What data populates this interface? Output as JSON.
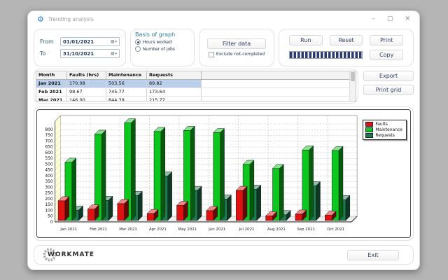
{
  "window": {
    "title": "Trending analysis",
    "controls": {
      "minimize": "–",
      "maximize": "▢",
      "close": "✕"
    }
  },
  "filters": {
    "from_label": "From",
    "from_value": "01/01/2021",
    "to_label": "To",
    "to_value": "31/10/2021",
    "basis": {
      "title": "Basis of graph",
      "options": [
        {
          "label": "Hours worked",
          "selected": true
        },
        {
          "label": "Number of jobs",
          "selected": false
        }
      ]
    },
    "filter_button": "Filter data",
    "exclude_checkbox": {
      "label": "Exclude not-completed",
      "checked": false
    }
  },
  "actions": {
    "run": "Run",
    "reset": "Reset",
    "print": "Print",
    "copy": "Copy",
    "progress_percent": 100
  },
  "grid": {
    "columns": [
      "Month",
      "Faults (hrs)",
      "Maintenance",
      "Requests"
    ],
    "rows": [
      {
        "month": "Jan 2021",
        "values": [
          "170.08",
          "503.56",
          "89.82"
        ],
        "selected": true
      },
      {
        "month": "Feb 2021",
        "values": [
          "98.67",
          "745.77",
          "173.64"
        ],
        "selected": false
      },
      {
        "month": "Mar 2021",
        "values": [
          "146.00",
          "844.39",
          "215.77"
        ],
        "selected": false
      }
    ],
    "export_button": "Export",
    "print_grid_button": "Print grid"
  },
  "chart_data": {
    "type": "bar",
    "style": "3d-column",
    "title": "",
    "xlabel": "",
    "ylabel": "",
    "categories": [
      "Jan 2021",
      "Feb 2021",
      "Mar 2021",
      "Apr 2021",
      "May 2021",
      "Jun 2021",
      "Jul 2021",
      "Aug 2021",
      "Sep 2021",
      "Oct 2021"
    ],
    "series": [
      {
        "name": "Faults",
        "color": "#e01111",
        "values": [
          170.08,
          98.67,
          146.0,
          60,
          130,
          85,
          260,
          40,
          55,
          45
        ]
      },
      {
        "name": "Maintenance",
        "color": "#0cc81e",
        "values": [
          503.56,
          745.77,
          844.39,
          770,
          780,
          760,
          485,
          450,
          610,
          605
        ]
      },
      {
        "name": "Requests",
        "color": "#1c7a4e",
        "values": [
          89.82,
          173.64,
          215.77,
          385,
          260,
          185,
          270,
          50,
          300,
          180
        ]
      }
    ],
    "ylim": [
      0,
      800
    ],
    "ytick_step": 50,
    "grid": "dashed",
    "legend_position": "top-right",
    "wall_color": "#ffffd8"
  },
  "footer": {
    "logo": "WORKMATE",
    "exit_button": "Exit"
  }
}
